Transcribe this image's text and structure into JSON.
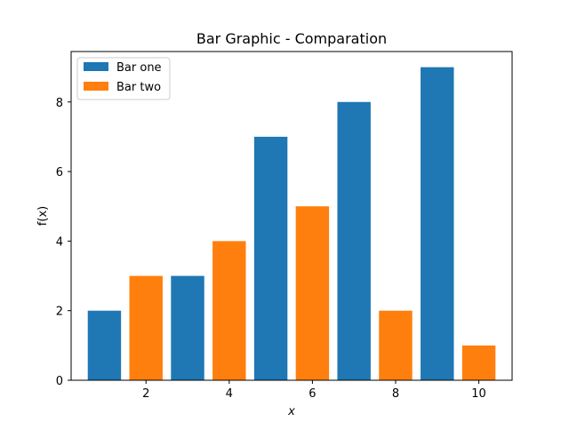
{
  "chart_data": {
    "type": "bar",
    "title": "Bar Graphic - Comparation",
    "xlabel": "x",
    "ylabel": "f(x)",
    "xlim": [
      0.2,
      10.8
    ],
    "ylim": [
      0,
      9.45
    ],
    "x_ticks": [
      2,
      4,
      6,
      8,
      10
    ],
    "y_ticks": [
      0,
      2,
      4,
      6,
      8
    ],
    "bar_width": 0.8,
    "grid": false,
    "legend_position": "top-left",
    "series": [
      {
        "name": "Bar one",
        "color": "#1f77b4",
        "x": [
          1,
          3,
          5,
          7,
          9
        ],
        "values": [
          2,
          3,
          7,
          8,
          9
        ]
      },
      {
        "name": "Bar two",
        "color": "#ff7f0e",
        "x": [
          2,
          4,
          6,
          8,
          10
        ],
        "values": [
          3,
          4,
          5,
          2,
          1
        ]
      }
    ]
  }
}
